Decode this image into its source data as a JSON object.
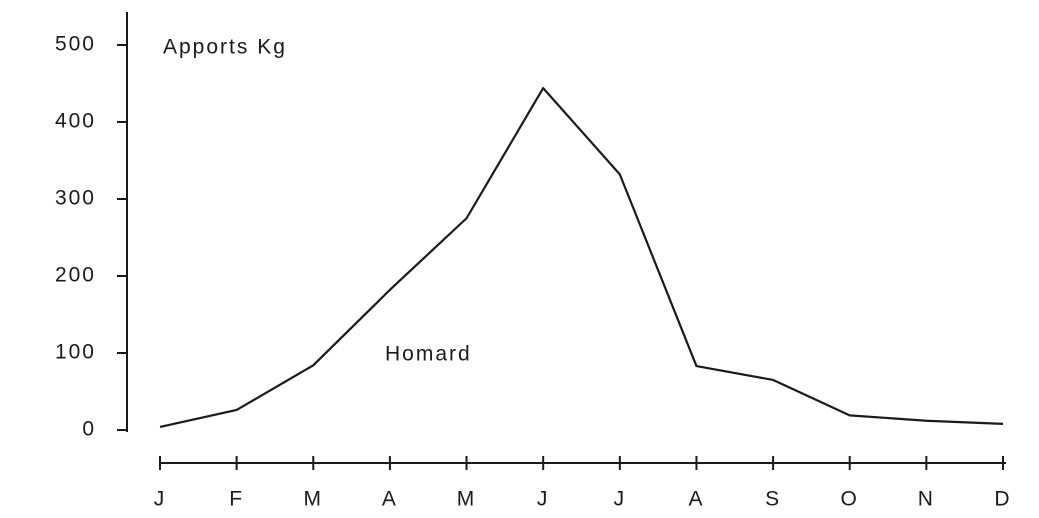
{
  "chart_data": {
    "type": "line",
    "annotations": [
      "Apports Kg",
      "Homard"
    ],
    "categories": [
      "J",
      "F",
      "M",
      "A",
      "M",
      "J",
      "J",
      "A",
      "S",
      "O",
      "N",
      "D"
    ],
    "values": [
      4,
      26,
      84,
      182,
      275,
      444,
      332,
      83,
      65,
      19,
      12,
      8
    ],
    "color": "#1a1a1a",
    "ylim": [
      0,
      500
    ],
    "yticks": [
      0,
      100,
      200,
      300,
      400,
      500
    ],
    "grid": false
  }
}
